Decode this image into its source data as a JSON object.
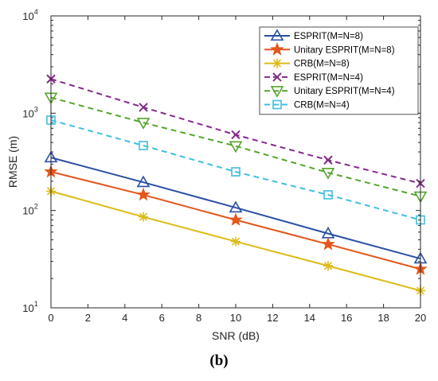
{
  "chart_data": {
    "type": "line",
    "xlabel": "SNR (dB)",
    "ylabel": "RMSE (m)",
    "x": [
      0,
      5,
      10,
      15,
      20
    ],
    "xlim": [
      0,
      20
    ],
    "xticks": [
      "0",
      "2",
      "4",
      "6",
      "8",
      "10",
      "12",
      "14",
      "16",
      "18",
      "20"
    ],
    "ylim": [
      10,
      10000
    ],
    "yscale": "log",
    "yticks": [
      {
        "base": "10",
        "exp": "1"
      },
      {
        "base": "10",
        "exp": "2"
      },
      {
        "base": "10",
        "exp": "3"
      },
      {
        "base": "10",
        "exp": "4"
      }
    ],
    "grid": false,
    "legend_position": "top-right",
    "series": [
      {
        "name": "ESPRIT(M=N=8)",
        "values": [
          350,
          195,
          107,
          58,
          32
        ],
        "color": "#2a4fa3",
        "marker": "triangle-up",
        "dashed": false
      },
      {
        "name": "Unitary ESPRIT(M=N=8)",
        "values": [
          250,
          145,
          80,
          45,
          25
        ],
        "color": "#e4561b",
        "marker": "pentagram",
        "dashed": false
      },
      {
        "name": "CRB(M=N=8)",
        "values": [
          158,
          86,
          48,
          27,
          15
        ],
        "color": "#dcbc17",
        "marker": "asterisk",
        "dashed": false
      },
      {
        "name": "ESPRIT(M=N=4)",
        "values": [
          2250,
          1150,
          600,
          330,
          190
        ],
        "color": "#852a8c",
        "marker": "x",
        "dashed": true
      },
      {
        "name": "Unitary ESPRIT(M=N=4)",
        "values": [
          1450,
          800,
          460,
          245,
          140
        ],
        "color": "#56a52c",
        "marker": "triangle-down",
        "dashed": true
      },
      {
        "name": "CRB(M=N=4)",
        "values": [
          850,
          465,
          250,
          145,
          80
        ],
        "color": "#3fbfe0",
        "marker": "square",
        "dashed": true
      }
    ],
    "caption": "(b)"
  }
}
